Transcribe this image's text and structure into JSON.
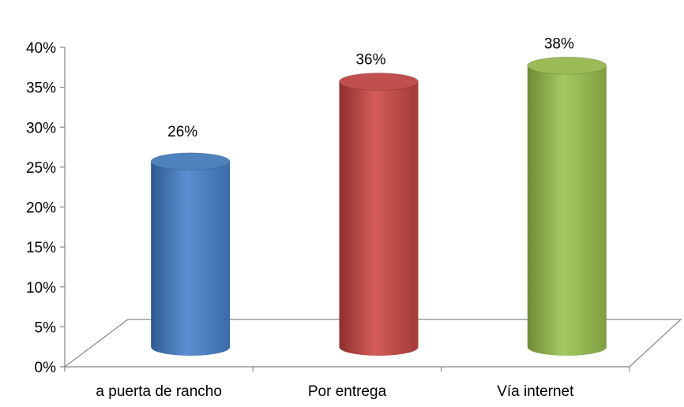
{
  "chart_data": {
    "type": "bar",
    "style": "3d-cylinder",
    "categories": [
      "a puerta de rancho",
      "Por entrega",
      "Vía internet"
    ],
    "values": [
      26,
      36,
      38
    ],
    "data_labels": [
      "26%",
      "36%",
      "38%"
    ],
    "colors": [
      "#4f81bd",
      "#c0504d",
      "#9bbb59"
    ],
    "ylim": [
      0,
      40
    ],
    "y_ticks": [
      0,
      5,
      10,
      15,
      20,
      25,
      30,
      35,
      40
    ],
    "y_tick_labels": [
      "0%",
      "5%",
      "10%",
      "15%",
      "20%",
      "25%",
      "30%",
      "35%",
      "40%"
    ],
    "grid": false,
    "legend": "none"
  }
}
